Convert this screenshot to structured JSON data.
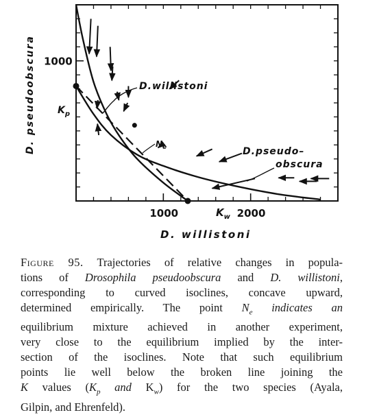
{
  "chart_data": {
    "type": "line",
    "xlabel": "D. willistoni",
    "ylabel": "D. pseudoobscura",
    "x_ticks": [
      1000,
      2000
    ],
    "y_ticks": [
      1000
    ],
    "xlim": [
      0,
      3000
    ],
    "ylim": [
      0,
      1400
    ],
    "special_labels": {
      "k_w": "K",
      "k_w_sub": "w",
      "k_p": "K",
      "k_p_sub": "p",
      "n_e": "N",
      "n_e_sub": "e"
    },
    "annotations": {
      "willistoni_isocline": "D.willistoni",
      "pseudoobscura_isocline_line1": "D.pseudo–",
      "pseudoobscura_isocline_line2": "obscura"
    },
    "points": {
      "K_w": [
        1280,
        0
      ],
      "K_p": [
        0,
        820
      ],
      "N_e": [
        670,
        540
      ]
    },
    "series": [
      {
        "name": "D.willistoni",
        "style": "solid",
        "x": [
          0,
          80,
          200,
          350,
          500,
          700,
          1000,
          1280
        ],
        "y": [
          1400,
          1150,
          850,
          620,
          460,
          300,
          130,
          0
        ]
      },
      {
        "name": "D.pseudo–obscura",
        "style": "solid",
        "x": [
          0,
          200,
          400,
          700,
          1000,
          1400,
          1800,
          2300,
          2800
        ],
        "y": [
          820,
          620,
          470,
          330,
          250,
          170,
          110,
          50,
          10
        ]
      },
      {
        "style": "dashed",
        "x": [
          0,
          1280
        ],
        "y": [
          820,
          0
        ]
      }
    ],
    "trajectories": [
      [
        [
          170,
          1300
        ],
        [
          150,
          1050
        ]
      ],
      [
        [
          250,
          1250
        ],
        [
          235,
          1030
        ]
      ],
      [
        [
          390,
          1100
        ],
        [
          400,
          930
        ]
      ],
      [
        [
          420,
          960
        ],
        [
          410,
          860
        ]
      ],
      [
        [
          470,
          780
        ],
        [
          490,
          720
        ]
      ],
      [
        [
          590,
          700
        ],
        [
          545,
          640
        ]
      ],
      [
        [
          600,
          820
        ],
        [
          600,
          740
        ]
      ],
      [
        [
          250,
          720
        ],
        [
          240,
          660
        ]
      ],
      [
        [
          260,
          470
        ],
        [
          245,
          550
        ]
      ],
      [
        [
          1180,
          860
        ],
        [
          1070,
          800
        ]
      ],
      [
        [
          1000,
          410
        ],
        [
          940,
          380
        ]
      ],
      [
        [
          1560,
          370
        ],
        [
          1380,
          320
        ]
      ],
      [
        [
          1900,
          340
        ],
        [
          1640,
          280
        ]
      ],
      [
        [
          2050,
          160
        ],
        [
          1560,
          90
        ]
      ],
      [
        [
          2500,
          165
        ],
        [
          2320,
          165
        ]
      ],
      [
        [
          2900,
          160
        ],
        [
          2690,
          160
        ]
      ],
      [
        [
          2760,
          140
        ],
        [
          2560,
          140
        ]
      ]
    ]
  },
  "caption": {
    "fig_label": "Figure 95.",
    "lines": [
      "Trajectories of relative changes in popula-",
      "tions of |Drosophila pseudoobscura| and |D. willistoni|,",
      "corresponding to curved isoclines, concave upward,",
      "determined empirically. The point |N|_e_| indicates an",
      "equilibrium mixture achieved in another experiment,",
      "very close to the equilibrium implied by the inter-",
      "section of the isoclines. Note that such equilibrium",
      "points lie well below the broken line joining the",
      "|K| values (|K|_p_| and |K|_w_|) for the two species (Ayala,",
      "Gilpin, and Ehrenfeld)."
    ]
  }
}
